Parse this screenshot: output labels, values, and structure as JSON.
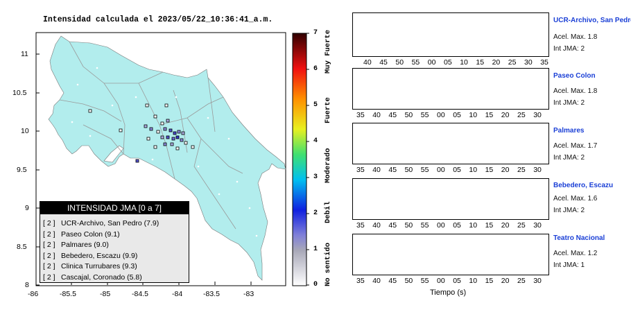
{
  "map": {
    "title": "Intensidad calculada el 2023/05/22_10:36:41_a.m.",
    "y_ticks": [
      "11",
      "10.5",
      "10",
      "9.5",
      "9",
      "8.5",
      "8"
    ],
    "x_ticks": [
      "-86",
      "-85.5",
      "-85",
      "-84.5",
      "-84",
      "-83.5",
      "-83"
    ],
    "land_color": "#b2eded",
    "water_color": "#ffffff",
    "legend": {
      "title": "INTENSIDAD JMA [0 a 7]",
      "rows": [
        {
          "bracket": "[ 2 ]",
          "name": "UCR-Archivo, San Pedro (7.9)"
        },
        {
          "bracket": "[ 2 ]",
          "name": "Paseo Colon (9.1)"
        },
        {
          "bracket": "[ 2 ]",
          "name": "Palmares (9.0)"
        },
        {
          "bracket": "[ 2 ]",
          "name": "Bebedero, Escazu (9.9)"
        },
        {
          "bracket": "[ 2 ]",
          "name": "Clinica Turrubares (9.3)"
        },
        {
          "bracket": "[ 2 ]",
          "name": "Cascajal, Coronado (5.8)"
        }
      ]
    }
  },
  "colorbar": {
    "ticks": [
      "7",
      "6",
      "5",
      "4",
      "3",
      "2",
      "1",
      "0"
    ],
    "words": [
      "Muy Fuerte",
      "Fuerte",
      "Moderado",
      "Debil",
      "No sentido"
    ]
  },
  "traces": [
    {
      "name": "UCR-Archivo, San Pedro",
      "acel": "Acel. Max. 1.8",
      "int": "Int JMA: 2",
      "color": "#117a11",
      "ticks": [
        "40",
        "45",
        "50",
        "55",
        "00",
        "05",
        "10",
        "15",
        "20",
        "25",
        "30",
        "35"
      ]
    },
    {
      "name": "Paseo Colon",
      "acel": "Acel. Max. 1.8",
      "int": "Int JMA: 2",
      "color": "#117a11",
      "ticks": [
        "35",
        "40",
        "45",
        "50",
        "55",
        "00",
        "05",
        "10",
        "15",
        "20",
        "25",
        "30"
      ]
    },
    {
      "name": "Palmares",
      "acel": "Acel. Max. 1.7",
      "int": "Int JMA: 2",
      "color": "#117a11",
      "ticks": [
        "35",
        "40",
        "45",
        "50",
        "55",
        "00",
        "05",
        "10",
        "15",
        "20",
        "25",
        "30"
      ]
    },
    {
      "name": "Bebedero, Escazu",
      "acel": "Acel. Max. 1.6",
      "int": "Int JMA: 2",
      "color": "#117a11",
      "ticks": [
        "35",
        "40",
        "45",
        "50",
        "55",
        "00",
        "05",
        "10",
        "15",
        "20",
        "25",
        "30"
      ]
    },
    {
      "name": "Teatro Nacional",
      "acel": "Acel. Max. 1.2",
      "int": "Int JMA: 1",
      "color": "#f0a000",
      "ticks": [
        "35",
        "40",
        "45",
        "50",
        "55",
        "00",
        "05",
        "10",
        "15",
        "20",
        "25",
        "30"
      ]
    }
  ],
  "time_axis_label": "Tiempo (s)"
}
